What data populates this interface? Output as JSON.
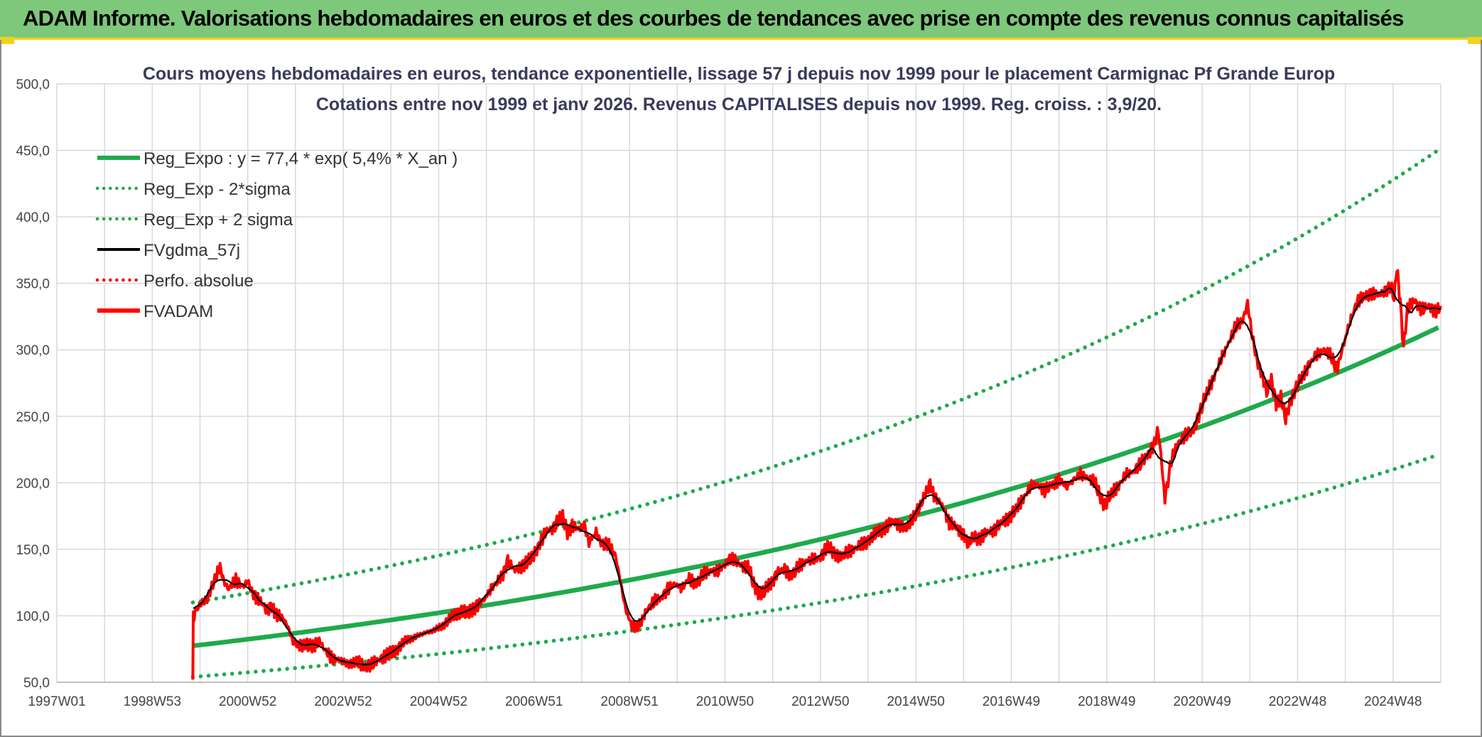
{
  "banner": {
    "title": "ADAM Informe. Valorisations hebdomadaires en euros et des courbes de tendances avec prise en compte des revenus connus capitalisés"
  },
  "colors": {
    "banner_bg": "#7dc87a",
    "banner_accent": "#f2d21a",
    "trend": "#1faa4b",
    "band": "#1faa4b",
    "smooth": "#000000",
    "perf": "#ff0000",
    "fvadam": "#ff0000",
    "grid": "#d9d9d9"
  },
  "chart_data": {
    "type": "line",
    "title": "Cours moyens hebdomadaires en euros, tendance exponentielle, lissage 57 j depuis nov 1999 pour le placement Carmignac Pf Grande Europ",
    "subtitle": "Cotations entre nov 1999 et janv 2026. Revenus CAPITALISES depuis nov 1999. Reg. croiss. : 3,9/20.",
    "xlabel": "",
    "ylabel": "",
    "x_range": [
      1997.0,
      2026.0
    ],
    "ylim": [
      50,
      500
    ],
    "y_ticks": [
      "50,0",
      "100,0",
      "150,0",
      "200,0",
      "250,0",
      "300,0",
      "350,0",
      "400,0",
      "450,0",
      "500,0"
    ],
    "x_ticks": [
      {
        "label": "1997W01",
        "x": 1997.0
      },
      {
        "label": "1998W53",
        "x": 1999.0
      },
      {
        "label": "2000W52",
        "x": 2001.0
      },
      {
        "label": "2002W52",
        "x": 2003.0
      },
      {
        "label": "2004W52",
        "x": 2005.0
      },
      {
        "label": "2006W51",
        "x": 2007.0
      },
      {
        "label": "2008W51",
        "x": 2009.0
      },
      {
        "label": "2010W50",
        "x": 2011.0
      },
      {
        "label": "2012W50",
        "x": 2013.0
      },
      {
        "label": "2014W50",
        "x": 2015.0
      },
      {
        "label": "2016W49",
        "x": 2017.0
      },
      {
        "label": "2018W49",
        "x": 2019.0
      },
      {
        "label": "2020W49",
        "x": 2021.0
      },
      {
        "label": "2022W48",
        "x": 2023.0
      },
      {
        "label": "2024W48",
        "x": 2025.0
      }
    ],
    "grid": true,
    "legend_position": "top-left",
    "series": [
      {
        "name": "Reg_Expo : y = 77,4 * exp( 5,4% *  X_an )",
        "style": "solid-thick",
        "color": "#1faa4b",
        "kind": "exp",
        "x_start": 1999.85,
        "x_end": 2026.0,
        "a": 77.4,
        "rate": 0.054
      },
      {
        "name": "Reg_Exp - 2*sigma",
        "style": "dotted",
        "color": "#1faa4b",
        "kind": "exp",
        "x_start": 1999.85,
        "x_end": 2026.0,
        "a": 54.0,
        "rate": 0.054
      },
      {
        "name": "Reg_Exp + 2 sigma",
        "style": "dotted",
        "color": "#1faa4b",
        "kind": "exp",
        "x_start": 1999.85,
        "x_end": 2026.0,
        "a": 110.0,
        "rate": 0.054
      },
      {
        "name": "FVgdma_57j",
        "style": "solid",
        "color": "#000000",
        "kind": "smooth_of_fvadam"
      },
      {
        "name": "Perfo. absolue",
        "style": "dotted",
        "color": "#ff0000",
        "kind": "legend_only"
      },
      {
        "name": "FVADAM",
        "style": "solid-thick",
        "color": "#ff0000",
        "kind": "points",
        "points": [
          [
            1999.85,
            52
          ],
          [
            1999.86,
            100
          ],
          [
            1999.95,
            106
          ],
          [
            2000.05,
            110
          ],
          [
            2000.15,
            113
          ],
          [
            2000.25,
            122
          ],
          [
            2000.35,
            130
          ],
          [
            2000.42,
            137
          ],
          [
            2000.5,
            126
          ],
          [
            2000.6,
            120
          ],
          [
            2000.75,
            127
          ],
          [
            2000.9,
            122
          ],
          [
            2001.0,
            126
          ],
          [
            2001.1,
            117
          ],
          [
            2001.25,
            112
          ],
          [
            2001.4,
            104
          ],
          [
            2001.5,
            108
          ],
          [
            2001.6,
            100
          ],
          [
            2001.75,
            98
          ],
          [
            2001.85,
            91
          ],
          [
            2001.95,
            80
          ],
          [
            2002.05,
            78
          ],
          [
            2002.2,
            79
          ],
          [
            2002.35,
            76
          ],
          [
            2002.5,
            82
          ],
          [
            2002.6,
            75
          ],
          [
            2002.75,
            69
          ],
          [
            2002.9,
            67
          ],
          [
            2003.1,
            64
          ],
          [
            2003.3,
            65
          ],
          [
            2003.45,
            62
          ],
          [
            2003.6,
            63
          ],
          [
            2003.75,
            67
          ],
          [
            2003.9,
            70
          ],
          [
            2004.1,
            74
          ],
          [
            2004.3,
            81
          ],
          [
            2004.5,
            84
          ],
          [
            2004.7,
            87
          ],
          [
            2004.9,
            89
          ],
          [
            2005.1,
            93
          ],
          [
            2005.3,
            100
          ],
          [
            2005.5,
            104
          ],
          [
            2005.6,
            101
          ],
          [
            2005.8,
            108
          ],
          [
            2005.95,
            112
          ],
          [
            2006.1,
            121
          ],
          [
            2006.25,
            126
          ],
          [
            2006.35,
            131
          ],
          [
            2006.45,
            142
          ],
          [
            2006.6,
            134
          ],
          [
            2006.75,
            138
          ],
          [
            2006.95,
            143
          ],
          [
            2007.1,
            153
          ],
          [
            2007.25,
            163
          ],
          [
            2007.4,
            166
          ],
          [
            2007.5,
            172
          ],
          [
            2007.6,
            174
          ],
          [
            2007.7,
            163
          ],
          [
            2007.8,
            168
          ],
          [
            2007.95,
            165
          ],
          [
            2008.05,
            169
          ],
          [
            2008.15,
            155
          ],
          [
            2008.3,
            163
          ],
          [
            2008.4,
            155
          ],
          [
            2008.55,
            153
          ],
          [
            2008.7,
            146
          ],
          [
            2008.8,
            128
          ],
          [
            2008.9,
            108
          ],
          [
            2008.98,
            98
          ],
          [
            2009.05,
            94
          ],
          [
            2009.15,
            91
          ],
          [
            2009.25,
            95
          ],
          [
            2009.35,
            104
          ],
          [
            2009.5,
            110
          ],
          [
            2009.65,
            113
          ],
          [
            2009.8,
            120
          ],
          [
            2009.95,
            124
          ],
          [
            2010.1,
            121
          ],
          [
            2010.25,
            128
          ],
          [
            2010.4,
            124
          ],
          [
            2010.55,
            131
          ],
          [
            2010.7,
            134
          ],
          [
            2010.85,
            133
          ],
          [
            2011.0,
            139
          ],
          [
            2011.1,
            143
          ],
          [
            2011.25,
            140
          ],
          [
            2011.4,
            137
          ],
          [
            2011.5,
            136
          ],
          [
            2011.6,
            124
          ],
          [
            2011.7,
            118
          ],
          [
            2011.8,
            117
          ],
          [
            2011.9,
            122
          ],
          [
            2012.0,
            126
          ],
          [
            2012.1,
            133
          ],
          [
            2012.25,
            135
          ],
          [
            2012.4,
            130
          ],
          [
            2012.55,
            137
          ],
          [
            2012.7,
            141
          ],
          [
            2012.85,
            142
          ],
          [
            2013.0,
            144
          ],
          [
            2013.15,
            152
          ],
          [
            2013.3,
            147
          ],
          [
            2013.45,
            144
          ],
          [
            2013.6,
            149
          ],
          [
            2013.75,
            151
          ],
          [
            2013.9,
            154
          ],
          [
            2014.05,
            158
          ],
          [
            2014.2,
            163
          ],
          [
            2014.35,
            166
          ],
          [
            2014.5,
            171
          ],
          [
            2014.65,
            169
          ],
          [
            2014.8,
            165
          ],
          [
            2014.95,
            175
          ],
          [
            2015.1,
            183
          ],
          [
            2015.2,
            192
          ],
          [
            2015.3,
            200
          ],
          [
            2015.4,
            188
          ],
          [
            2015.55,
            184
          ],
          [
            2015.7,
            170
          ],
          [
            2015.85,
            166
          ],
          [
            2016.0,
            162
          ],
          [
            2016.1,
            153
          ],
          [
            2016.2,
            160
          ],
          [
            2016.35,
            158
          ],
          [
            2016.5,
            163
          ],
          [
            2016.65,
            165
          ],
          [
            2016.8,
            170
          ],
          [
            2016.95,
            174
          ],
          [
            2017.1,
            180
          ],
          [
            2017.25,
            188
          ],
          [
            2017.4,
            197
          ],
          [
            2017.55,
            199
          ],
          [
            2017.7,
            194
          ],
          [
            2017.85,
            198
          ],
          [
            2018.0,
            203
          ],
          [
            2018.15,
            197
          ],
          [
            2018.3,
            202
          ],
          [
            2018.45,
            206
          ],
          [
            2018.6,
            204
          ],
          [
            2018.75,
            200
          ],
          [
            2018.85,
            191
          ],
          [
            2018.95,
            183
          ],
          [
            2019.1,
            192
          ],
          [
            2019.25,
            198
          ],
          [
            2019.4,
            206
          ],
          [
            2019.55,
            208
          ],
          [
            2019.7,
            214
          ],
          [
            2019.85,
            220
          ],
          [
            2020.0,
            230
          ],
          [
            2020.08,
            240
          ],
          [
            2020.15,
            215
          ],
          [
            2020.22,
            188
          ],
          [
            2020.35,
            216
          ],
          [
            2020.5,
            230
          ],
          [
            2020.65,
            236
          ],
          [
            2020.8,
            238
          ],
          [
            2020.95,
            253
          ],
          [
            2021.1,
            268
          ],
          [
            2021.25,
            280
          ],
          [
            2021.4,
            293
          ],
          [
            2021.55,
            305
          ],
          [
            2021.7,
            317
          ],
          [
            2021.85,
            322
          ],
          [
            2021.95,
            335
          ],
          [
            2022.05,
            310
          ],
          [
            2022.15,
            292
          ],
          [
            2022.25,
            282
          ],
          [
            2022.35,
            268
          ],
          [
            2022.45,
            277
          ],
          [
            2022.55,
            260
          ],
          [
            2022.65,
            264
          ],
          [
            2022.75,
            248
          ],
          [
            2022.85,
            262
          ],
          [
            2022.95,
            270
          ],
          [
            2023.1,
            280
          ],
          [
            2023.25,
            290
          ],
          [
            2023.4,
            296
          ],
          [
            2023.55,
            300
          ],
          [
            2023.7,
            295
          ],
          [
            2023.82,
            285
          ],
          [
            2023.95,
            302
          ],
          [
            2024.1,
            322
          ],
          [
            2024.25,
            336
          ],
          [
            2024.4,
            340
          ],
          [
            2024.55,
            343
          ],
          [
            2024.7,
            341
          ],
          [
            2024.85,
            345
          ],
          [
            2024.95,
            348
          ],
          [
            2025.02,
            339
          ],
          [
            2025.08,
            362
          ],
          [
            2025.15,
            336
          ],
          [
            2025.22,
            302
          ],
          [
            2025.3,
            330
          ],
          [
            2025.45,
            337
          ],
          [
            2025.6,
            330
          ],
          [
            2025.75,
            333
          ],
          [
            2025.9,
            329
          ],
          [
            2026.0,
            333
          ]
        ]
      }
    ]
  }
}
